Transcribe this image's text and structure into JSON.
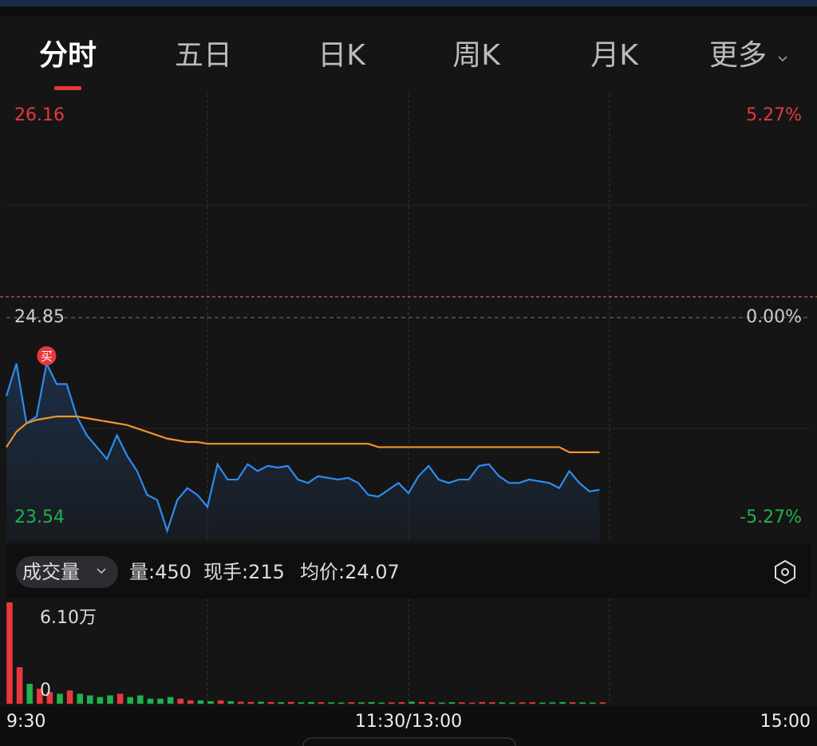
{
  "tabs": [
    "分时",
    "五日",
    "日K",
    "周K",
    "月K",
    "更多"
  ],
  "indicator": "成交量",
  "stats": [
    "量:450",
    "现手:215",
    "均价:24.07"
  ],
  "chart_data": [
    {
      "type": "line",
      "ylim": [
        23.54,
        26.16
      ],
      "yticks": [
        26.16,
        24.85,
        23.54
      ],
      "y2lim": [
        -5.27,
        5.27
      ],
      "y2ticks": [
        {
          "value": 5.27,
          "label": "5.27%"
        },
        {
          "value": 0,
          "label": "0.00%"
        },
        {
          "value": -5.27,
          "label": "-5.27%"
        }
      ],
      "xlim": [
        0,
        80
      ],
      "xticks": [
        {
          "value": 0,
          "label": "9:30"
        },
        {
          "value": 40,
          "label": "11:30/13:00"
        },
        {
          "value": 80,
          "label": "15:00"
        }
      ],
      "x": [
        0,
        1,
        2,
        3,
        4,
        5,
        6,
        7,
        8,
        9,
        10,
        11,
        12,
        13,
        14,
        15,
        16,
        17,
        18,
        19,
        20,
        21,
        22,
        23,
        24,
        25,
        26,
        27,
        28,
        29,
        30,
        31,
        32,
        33,
        34,
        35,
        36,
        37,
        38,
        39,
        40,
        41,
        42,
        43,
        44,
        45,
        46,
        47,
        48,
        49,
        50,
        51,
        52,
        53,
        54,
        55,
        56,
        57,
        58,
        59
      ],
      "series": [
        {
          "color": "#2d8cf0",
          "values": [
            24.39,
            24.58,
            24.23,
            24.27,
            24.58,
            24.46,
            24.46,
            24.27,
            24.16,
            24.09,
            24.02,
            24.16,
            24.04,
            23.95,
            23.81,
            23.78,
            23.6,
            23.78,
            23.85,
            23.81,
            23.74,
            23.99,
            23.9,
            23.9,
            23.99,
            23.95,
            23.98,
            23.97,
            23.98,
            23.9,
            23.88,
            23.92,
            23.91,
            23.9,
            23.91,
            23.88,
            23.81,
            23.8,
            23.84,
            23.88,
            23.82,
            23.92,
            23.98,
            23.9,
            23.88,
            23.9,
            23.9,
            23.98,
            23.99,
            23.92,
            23.88,
            23.88,
            23.9,
            23.89,
            23.88,
            23.85,
            23.95,
            23.88,
            23.83,
            23.84
          ]
        },
        {
          "color": "#f0932b",
          "values": [
            24.09,
            24.18,
            24.23,
            24.25,
            24.26,
            24.27,
            24.27,
            24.27,
            24.26,
            24.25,
            24.24,
            24.23,
            24.22,
            24.2,
            24.18,
            24.16,
            24.14,
            24.13,
            24.12,
            24.12,
            24.11,
            24.11,
            24.11,
            24.11,
            24.11,
            24.11,
            24.11,
            24.11,
            24.11,
            24.11,
            24.11,
            24.11,
            24.11,
            24.11,
            24.11,
            24.11,
            24.11,
            24.09,
            24.09,
            24.09,
            24.09,
            24.09,
            24.09,
            24.09,
            24.09,
            24.09,
            24.09,
            24.09,
            24.09,
            24.09,
            24.09,
            24.09,
            24.09,
            24.09,
            24.09,
            24.09,
            24.06,
            24.06,
            24.06,
            24.06
          ]
        }
      ],
      "annotations": [
        {
          "text": "买",
          "x": 4
        }
      ]
    },
    {
      "type": "bar",
      "ylim": [
        0,
        61000
      ],
      "yticks": [
        {
          "value": 61000,
          "label": "6.10万"
        },
        0
      ],
      "values": [
        61000,
        22000,
        12000,
        9000,
        7000,
        6000,
        8000,
        6000,
        5000,
        4000,
        5000,
        6000,
        4000,
        5000,
        3000,
        3000,
        4000,
        3000,
        2000,
        2000,
        1500,
        2000,
        1500,
        1200,
        1000,
        1200,
        1000,
        900,
        1100,
        800,
        1000,
        900,
        800,
        700,
        900,
        800,
        1000,
        700,
        800,
        900,
        1200,
        1000,
        800,
        700,
        900,
        800,
        700,
        1000,
        900,
        800,
        700,
        800,
        900,
        700,
        800,
        1000,
        900,
        800,
        700,
        800
      ]
    }
  ]
}
